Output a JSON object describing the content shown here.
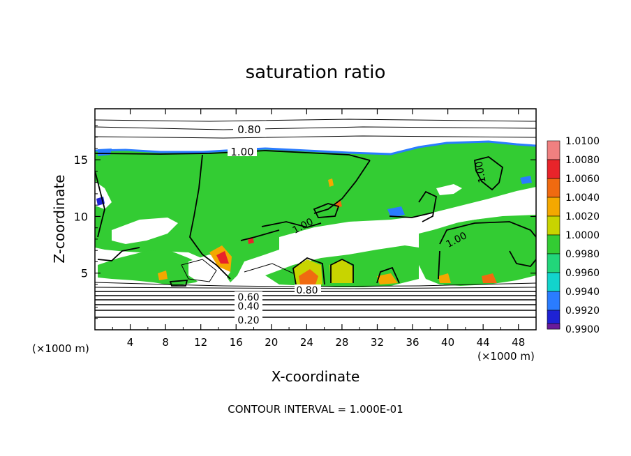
{
  "chart_data": {
    "type": "heatmap",
    "title": "saturation ratio",
    "xlabel": "X-coordinate",
    "ylabel": "Z-coordinate",
    "x_unit_left": "(×1000 m)",
    "x_unit_right": "(×1000 m)",
    "xlim": [
      0,
      50
    ],
    "ylim": [
      0,
      19.5
    ],
    "x_ticks": [
      4,
      8,
      12,
      16,
      20,
      24,
      28,
      32,
      36,
      40,
      44,
      48
    ],
    "y_ticks": [
      5,
      10,
      15
    ],
    "colorbar": {
      "levels": [
        "1.0100",
        "1.0080",
        "1.0060",
        "1.0040",
        "1.0020",
        "1.0000",
        "0.9980",
        "0.9960",
        "0.9940",
        "0.9920",
        "0.9900"
      ],
      "colors": [
        "#f08080",
        "#e8242a",
        "#f06a10",
        "#f4a800",
        "#c8d400",
        "#33cc33",
        "#22d67a",
        "#12d4cc",
        "#2a7cff",
        "#1e22d4",
        "#6a1b9a"
      ]
    },
    "contour_labels": [
      "0.80",
      "1.00",
      "1.00",
      "1.00",
      "1.00",
      "0.80",
      "0.60",
      "0.40",
      "0.20"
    ],
    "footer": "CONTOUR INTERVAL = 1.000E-01"
  }
}
